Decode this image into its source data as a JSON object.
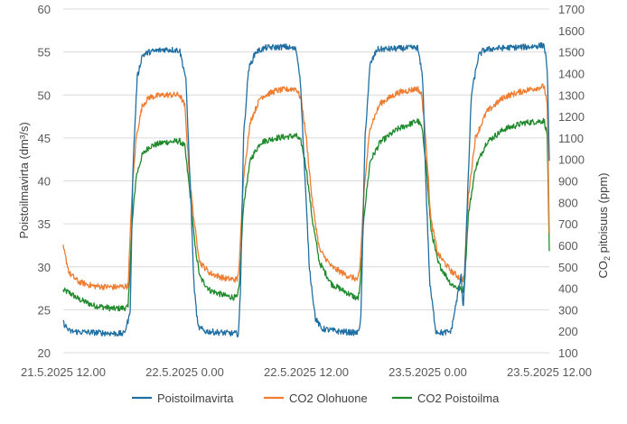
{
  "colors": {
    "Poistoilmavirta": "#1f6fa3",
    "CO2 Olohuone": "#ee7d31",
    "CO2 Poistoilma": "#1f8a2c",
    "grid": "#d9d9d9"
  },
  "chart_data": {
    "type": "line",
    "title": "",
    "xlabel": "",
    "ylabel_left": "Poistoilmavirta (dm³/s)",
    "ylabel_right": "CO2 pitoisuus (ppm)",
    "grid": true,
    "legend_position": "bottom",
    "xlim": [
      0,
      48
    ],
    "x_ticks": [
      {
        "x": 0,
        "label": "21.5.2025 12.00"
      },
      {
        "x": 12,
        "label": "22.5.2025 0.00"
      },
      {
        "x": 24,
        "label": "22.5.2025 12.00"
      },
      {
        "x": 36,
        "label": "23.5.2025 0.00"
      },
      {
        "x": 48,
        "label": "23.5.2025 12.00"
      }
    ],
    "x_unit_note": "",
    "ylim_left": [
      20,
      60
    ],
    "yticks_left": [
      "20",
      "25",
      "30",
      "35",
      "40",
      "45",
      "50",
      "55",
      "60"
    ],
    "ylim_right": [
      100,
      1700
    ],
    "yticks_right": [
      "100",
      "200",
      "300",
      "400",
      "500",
      "600",
      "700",
      "800",
      "900",
      "1000",
      "1100",
      "1200",
      "1300",
      "1400",
      "1500",
      "1600",
      "1700"
    ],
    "series": [
      {
        "name": "Poistoilmavirta",
        "axis": "left",
        "x": [
          0,
          0.6,
          2,
          4,
          6,
          6.6,
          6.9,
          7.3,
          7.8,
          8.5,
          10,
          11.5,
          12.1,
          12.6,
          12.9,
          13.3,
          14,
          16,
          17.3,
          17.5,
          17.8,
          18.3,
          19,
          20,
          22,
          23,
          23.4,
          23.8,
          24.3,
          24.9,
          25.5,
          27,
          29.1,
          29.4,
          29.8,
          30.3,
          31,
          33,
          35,
          35.5,
          35.8,
          36.2,
          36.8,
          37.5,
          38.3,
          39.3,
          39.5,
          39.8,
          40.3,
          41,
          41.5,
          42.5,
          44,
          46,
          47.5,
          47.8,
          48
        ],
        "y": [
          23.5,
          22.5,
          22.4,
          22.3,
          22.2,
          24.5,
          42,
          52,
          54.6,
          55,
          55.3,
          55.2,
          52,
          38,
          28,
          23,
          22.5,
          22.3,
          22.2,
          27,
          45,
          53,
          55,
          55.5,
          55.6,
          55.3,
          52,
          42,
          30,
          24,
          22.8,
          22.5,
          22.3,
          24,
          45,
          53.5,
          55.3,
          55.4,
          55.5,
          52,
          40,
          28,
          22.5,
          22.3,
          22.5,
          29,
          25,
          34,
          50,
          54.5,
          55.2,
          55.4,
          55.5,
          55.6,
          55.8,
          53,
          42
        ]
      },
      {
        "name": "CO2 Olohuone",
        "axis": "right",
        "x": [
          0,
          0.6,
          1.5,
          3,
          5,
          6.4,
          6.8,
          7.2,
          7.8,
          8.5,
          10,
          11.5,
          12,
          12.5,
          13,
          13.5,
          14.5,
          16,
          17.2,
          17.4,
          17.8,
          18.5,
          19.5,
          21,
          23,
          23.5,
          24,
          24.6,
          25.3,
          26.5,
          28,
          29.1,
          29.3,
          29.7,
          30.3,
          31.3,
          33,
          35,
          35.4,
          35.8,
          36.3,
          37,
          38.3,
          39.4,
          39.6,
          40,
          40.7,
          41.8,
          43.5,
          45.5,
          47.5,
          47.8,
          48
        ],
        "y": [
          590,
          470,
          430,
          410,
          405,
          410,
          850,
          1100,
          1250,
          1290,
          1300,
          1300,
          1250,
          900,
          680,
          520,
          470,
          445,
          440,
          520,
          920,
          1180,
          1290,
          1320,
          1330,
          1280,
          1100,
          800,
          580,
          500,
          460,
          440,
          490,
          850,
          1150,
          1260,
          1310,
          1330,
          1300,
          1100,
          720,
          560,
          480,
          440,
          450,
          830,
          1100,
          1220,
          1290,
          1320,
          1340,
          1250,
          660
        ]
      },
      {
        "name": "CO2 Poistoilma",
        "axis": "right",
        "x": [
          0,
          0.6,
          1.5,
          3,
          5,
          6.4,
          6.8,
          7.2,
          7.8,
          8.5,
          10,
          11.5,
          12,
          12.5,
          13,
          13.5,
          14.5,
          16,
          17.2,
          17.4,
          17.8,
          18.5,
          19.5,
          21,
          23,
          23.5,
          24,
          24.6,
          25.3,
          26.5,
          28,
          29.1,
          29.3,
          29.7,
          30.3,
          31.3,
          33,
          35,
          35.4,
          35.8,
          36.3,
          37,
          38.3,
          39.4,
          39.6,
          40,
          40.7,
          41.8,
          43.5,
          45.5,
          47.5,
          47.8,
          48
        ],
        "y": [
          390,
          380,
          350,
          320,
          305,
          310,
          700,
          920,
          1020,
          1060,
          1080,
          1085,
          1060,
          850,
          600,
          450,
          390,
          365,
          355,
          420,
          790,
          1000,
          1080,
          1100,
          1110,
          1080,
          960,
          720,
          520,
          420,
          380,
          350,
          400,
          740,
          990,
          1080,
          1140,
          1180,
          1150,
          1000,
          680,
          520,
          420,
          390,
          400,
          740,
          960,
          1080,
          1140,
          1170,
          1180,
          1110,
          560
        ]
      }
    ]
  }
}
